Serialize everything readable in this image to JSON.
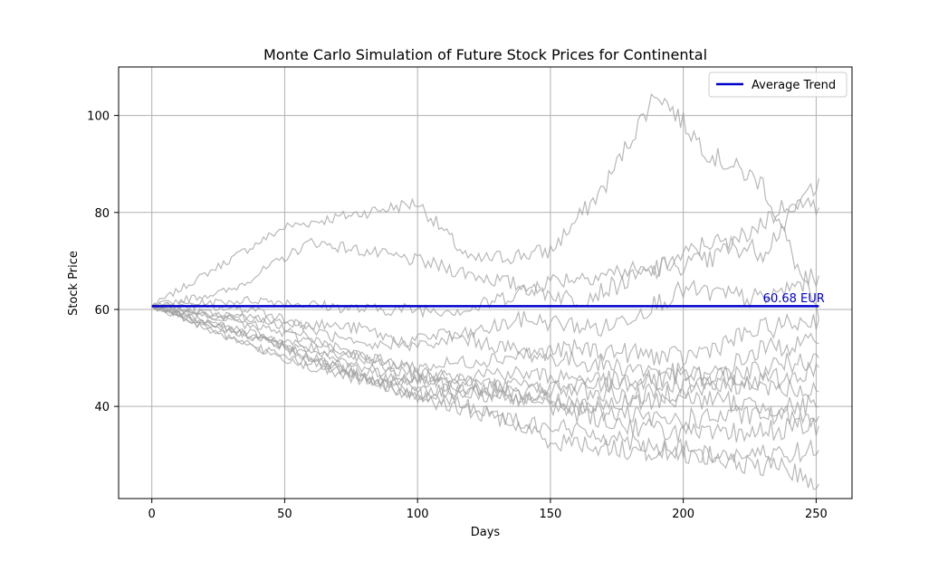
{
  "chart_data": {
    "type": "line",
    "title": "Monte Carlo Simulation of Future Stock Prices for Continental",
    "xlabel": "Days",
    "ylabel": "Stock Price",
    "xlim": [
      -12.5,
      263.5
    ],
    "ylim": [
      21,
      110
    ],
    "xticks": [
      0,
      50,
      100,
      150,
      200,
      250
    ],
    "yticks": [
      40,
      60,
      80,
      100
    ],
    "grid": true,
    "legend": {
      "position": "top-right",
      "entries": [
        {
          "label": "Average Trend",
          "color": "#0000cc"
        }
      ]
    },
    "average_trend": {
      "value": 60.68,
      "x_start": 0,
      "x_end": 251,
      "color": "#0000cc"
    },
    "annotation": {
      "text": "60.68 EUR",
      "x": 230,
      "y": 61.5,
      "color": "#0000cc"
    },
    "simulation_color": "#a0a0a0",
    "series": [
      {
        "values": [
          [
            0,
            60.7
          ],
          [
            50,
            77
          ],
          [
            100,
            82
          ],
          [
            120,
            70
          ],
          [
            150,
            72
          ],
          [
            170,
            85
          ],
          [
            190,
            105
          ],
          [
            210,
            92
          ],
          [
            230,
            86
          ],
          [
            251,
            58
          ]
        ]
      },
      {
        "values": [
          [
            0,
            60.7
          ],
          [
            30,
            64
          ],
          [
            60,
            74
          ],
          [
            100,
            70
          ],
          [
            130,
            66
          ],
          [
            160,
            62
          ],
          [
            190,
            68
          ],
          [
            210,
            74
          ],
          [
            230,
            72
          ],
          [
            251,
            87
          ]
        ]
      },
      {
        "values": [
          [
            0,
            60.7
          ],
          [
            40,
            62
          ],
          [
            80,
            60
          ],
          [
            120,
            60
          ],
          [
            150,
            66
          ],
          [
            180,
            68
          ],
          [
            210,
            70
          ],
          [
            240,
            82
          ],
          [
            251,
            81
          ]
        ]
      },
      {
        "values": [
          [
            0,
            60.7
          ],
          [
            40,
            58
          ],
          [
            80,
            56
          ],
          [
            100,
            52
          ],
          [
            140,
            58
          ],
          [
            170,
            56
          ],
          [
            200,
            64
          ],
          [
            230,
            62
          ],
          [
            251,
            67
          ]
        ]
      },
      {
        "values": [
          [
            0,
            60.7
          ],
          [
            30,
            56
          ],
          [
            60,
            52
          ],
          [
            100,
            48
          ],
          [
            130,
            50
          ],
          [
            160,
            52
          ],
          [
            200,
            50
          ],
          [
            230,
            56
          ],
          [
            251,
            58
          ]
        ]
      },
      {
        "values": [
          [
            0,
            60.7
          ],
          [
            40,
            60
          ],
          [
            80,
            52
          ],
          [
            110,
            55
          ],
          [
            150,
            50
          ],
          [
            180,
            48
          ],
          [
            210,
            46
          ],
          [
            230,
            52
          ],
          [
            251,
            53
          ]
        ]
      },
      {
        "values": [
          [
            0,
            60.7
          ],
          [
            30,
            58
          ],
          [
            70,
            52
          ],
          [
            100,
            46
          ],
          [
            130,
            47
          ],
          [
            160,
            46
          ],
          [
            200,
            44
          ],
          [
            230,
            48
          ],
          [
            251,
            50
          ]
        ]
      },
      {
        "values": [
          [
            0,
            60.7
          ],
          [
            40,
            54
          ],
          [
            80,
            48
          ],
          [
            110,
            45
          ],
          [
            150,
            44
          ],
          [
            180,
            42
          ],
          [
            210,
            44
          ],
          [
            240,
            46
          ],
          [
            251,
            48
          ]
        ]
      },
      {
        "values": [
          [
            0,
            60.7
          ],
          [
            30,
            58
          ],
          [
            60,
            50
          ],
          [
            100,
            44
          ],
          [
            130,
            42
          ],
          [
            160,
            44
          ],
          [
            200,
            46
          ],
          [
            230,
            44
          ],
          [
            251,
            43
          ]
        ]
      },
      {
        "values": [
          [
            0,
            60.7
          ],
          [
            40,
            58
          ],
          [
            80,
            50
          ],
          [
            110,
            46
          ],
          [
            140,
            42
          ],
          [
            170,
            40
          ],
          [
            200,
            42
          ],
          [
            230,
            40
          ],
          [
            251,
            40
          ]
        ]
      },
      {
        "values": [
          [
            0,
            60.7
          ],
          [
            30,
            56
          ],
          [
            70,
            48
          ],
          [
            100,
            42
          ],
          [
            130,
            44
          ],
          [
            160,
            40
          ],
          [
            190,
            37
          ],
          [
            220,
            38
          ],
          [
            251,
            38
          ]
        ]
      },
      {
        "values": [
          [
            0,
            60.7
          ],
          [
            40,
            52
          ],
          [
            80,
            46
          ],
          [
            120,
            44
          ],
          [
            150,
            40
          ],
          [
            180,
            36
          ],
          [
            210,
            34
          ],
          [
            230,
            35
          ],
          [
            251,
            36
          ]
        ]
      },
      {
        "values": [
          [
            0,
            60.7
          ],
          [
            30,
            54
          ],
          [
            60,
            48
          ],
          [
            90,
            44
          ],
          [
            120,
            40
          ],
          [
            150,
            33
          ],
          [
            180,
            31
          ],
          [
            210,
            30
          ],
          [
            230,
            30
          ],
          [
            251,
            31
          ]
        ]
      },
      {
        "values": [
          [
            0,
            60.7
          ],
          [
            40,
            54
          ],
          [
            80,
            46
          ],
          [
            110,
            40
          ],
          [
            140,
            37
          ],
          [
            170,
            34
          ],
          [
            200,
            31
          ],
          [
            220,
            28
          ],
          [
            240,
            27
          ],
          [
            251,
            24
          ]
        ]
      }
    ]
  }
}
